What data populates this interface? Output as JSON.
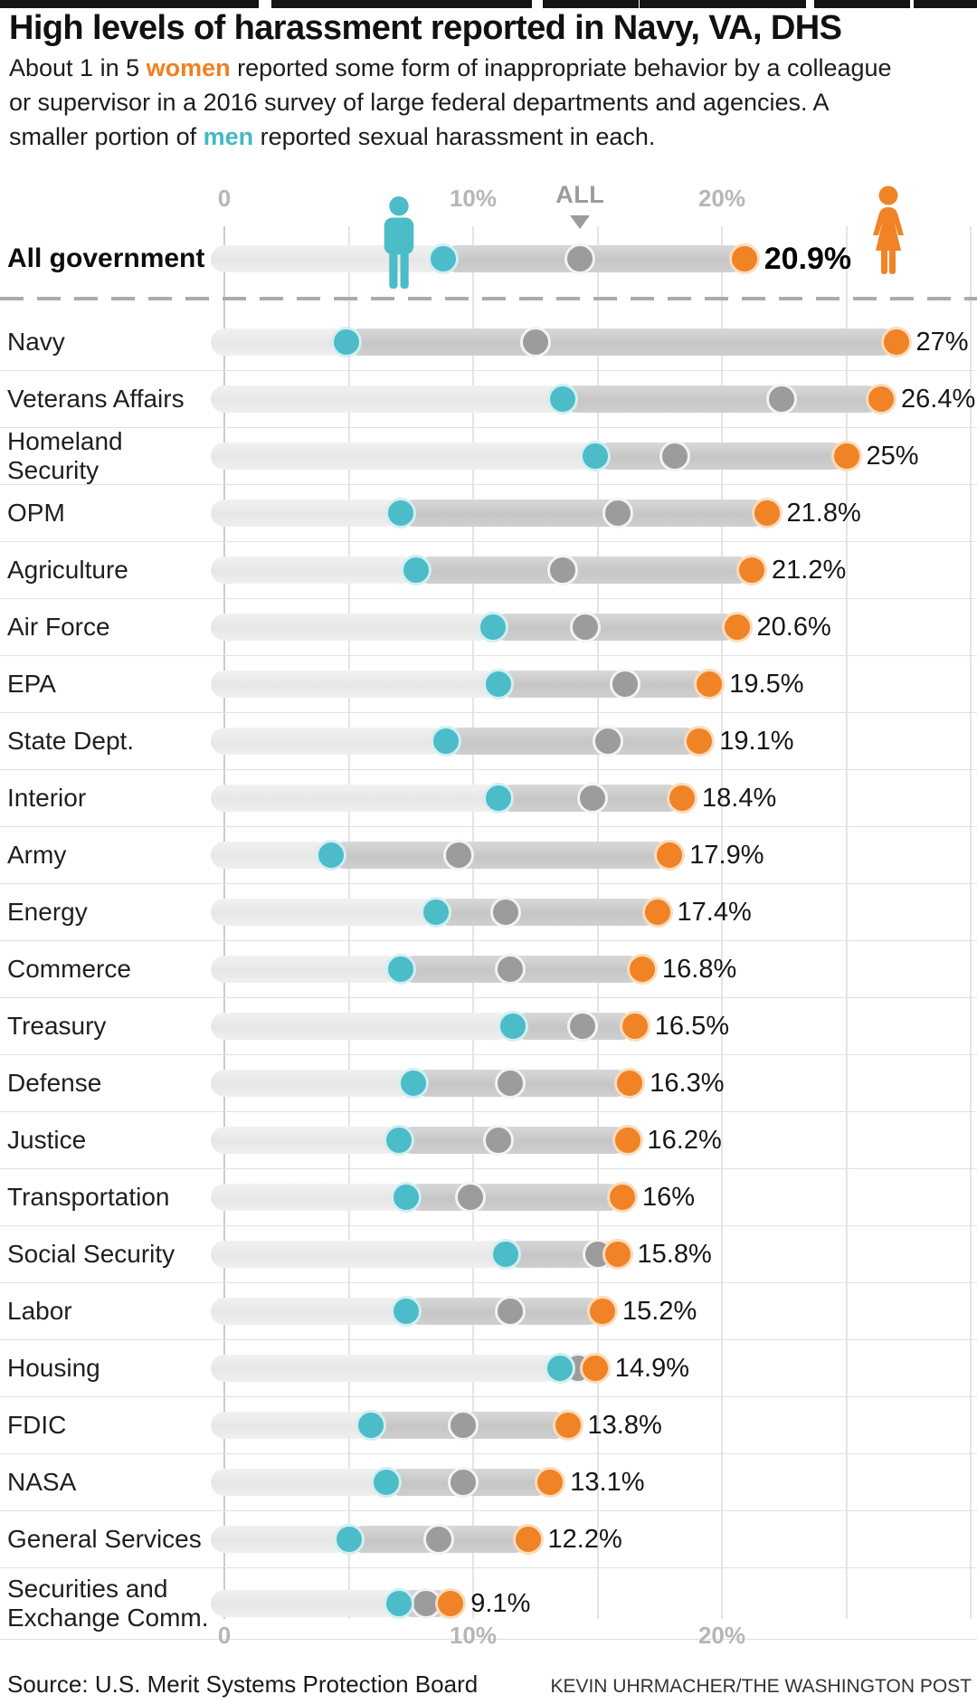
{
  "header": {
    "title": "High levels of harassment reported in Navy, VA, DHS",
    "subtitle_segments": [
      {
        "text": "About 1 in 5 "
      },
      {
        "text": "women",
        "style": "women"
      },
      {
        "text": " reported some form of inappropriate behavior by a colleague or supervisor in a 2016 survey of large federal departments and agencies. A smaller portion of "
      },
      {
        "text": "men",
        "style": "men"
      },
      {
        "text": " reported sexual harassment in each."
      }
    ]
  },
  "axis": {
    "top_labels": [
      {
        "pct": 0,
        "text": "0"
      },
      {
        "pct": 10,
        "text": "10%"
      },
      {
        "pct": 20,
        "text": "20%"
      }
    ],
    "all_marker": {
      "pct": 14.3,
      "text": "ALL"
    },
    "bottom_labels": [
      {
        "pct": 0,
        "text": "0"
      },
      {
        "pct": 10,
        "text": "10%"
      },
      {
        "pct": 20,
        "text": "20%"
      }
    ],
    "gridline_pcts": [
      0,
      5,
      10,
      15,
      20,
      25,
      30
    ]
  },
  "colors": {
    "women": "#f08326",
    "men": "#4cbcc9",
    "all": "#9c9c9c",
    "connector": "#c9c9c9",
    "track": "#ececec"
  },
  "chart_data": {
    "type": "dumbbell",
    "unit": "percent",
    "x_range": [
      0,
      30
    ],
    "series": [
      "men",
      "all",
      "women"
    ],
    "rows": [
      {
        "label": "All government",
        "men": 8.8,
        "all": 14.3,
        "women": 20.9,
        "women_display": "20.9%",
        "summary": true
      },
      {
        "label": "Navy",
        "men": 4.9,
        "all": 12.5,
        "women": 27,
        "women_display": "27%"
      },
      {
        "label": "Veterans Affairs",
        "men": 13.6,
        "all": 22.4,
        "women": 26.4,
        "women_display": "26.4%"
      },
      {
        "label": "Homeland Security",
        "men": 14.9,
        "all": 18.1,
        "women": 25,
        "women_display": "25%"
      },
      {
        "label": "OPM",
        "men": 7.1,
        "all": 15.8,
        "women": 21.8,
        "women_display": "21.8%"
      },
      {
        "label": "Agriculture",
        "men": 7.7,
        "all": 13.6,
        "women": 21.2,
        "women_display": "21.2%"
      },
      {
        "label": "Air Force",
        "men": 10.8,
        "all": 14.5,
        "women": 20.6,
        "women_display": "20.6%"
      },
      {
        "label": "EPA",
        "men": 11.0,
        "all": 16.1,
        "women": 19.5,
        "women_display": "19.5%"
      },
      {
        "label": "State Dept.",
        "men": 8.9,
        "all": 15.4,
        "women": 19.1,
        "women_display": "19.1%"
      },
      {
        "label": "Interior",
        "men": 11.0,
        "all": 14.8,
        "women": 18.4,
        "women_display": "18.4%"
      },
      {
        "label": "Army",
        "men": 4.3,
        "all": 9.4,
        "women": 17.9,
        "women_display": "17.9%"
      },
      {
        "label": "Energy",
        "men": 8.5,
        "all": 11.3,
        "women": 17.4,
        "women_display": "17.4%"
      },
      {
        "label": "Commerce",
        "men": 7.1,
        "all": 11.5,
        "women": 16.8,
        "women_display": "16.8%"
      },
      {
        "label": "Treasury",
        "men": 11.6,
        "all": 14.4,
        "women": 16.5,
        "women_display": "16.5%"
      },
      {
        "label": "Defense",
        "men": 7.6,
        "all": 11.5,
        "women": 16.3,
        "women_display": "16.3%"
      },
      {
        "label": "Justice",
        "men": 7.0,
        "all": 11.0,
        "women": 16.2,
        "women_display": "16.2%"
      },
      {
        "label": "Transportation",
        "men": 7.3,
        "all": 9.9,
        "women": 16,
        "women_display": "16%"
      },
      {
        "label": "Social Security",
        "men": 11.3,
        "all": 15.0,
        "women": 15.8,
        "women_display": "15.8%"
      },
      {
        "label": "Labor",
        "men": 7.3,
        "all": 11.5,
        "women": 15.2,
        "women_display": "15.2%"
      },
      {
        "label": "Housing",
        "men": 13.5,
        "all": 14.2,
        "women": 14.9,
        "women_display": "14.9%"
      },
      {
        "label": "FDIC",
        "men": 5.9,
        "all": 9.6,
        "women": 13.8,
        "women_display": "13.8%"
      },
      {
        "label": "NASA",
        "men": 6.5,
        "all": 9.6,
        "women": 13.1,
        "women_display": "13.1%"
      },
      {
        "label": "General Services",
        "men": 5.0,
        "all": 8.6,
        "women": 12.2,
        "women_display": "12.2%"
      },
      {
        "label": "Securities and Exchange Comm.",
        "men": 7.0,
        "all": 8.1,
        "women": 9.1,
        "women_display": "9.1%"
      }
    ]
  },
  "footer": {
    "source": "Source: U.S. Merit Systems Protection Board",
    "credit": "KEVIN UHRMACHER/THE WASHINGTON POST"
  }
}
